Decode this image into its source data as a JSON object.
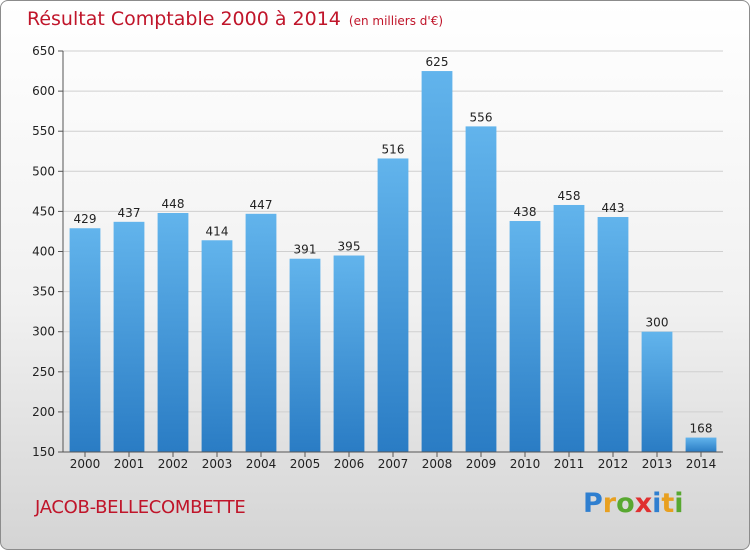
{
  "chart_data": {
    "type": "bar",
    "title": "Résultat Comptable 2000 à 2014",
    "subtitle": "(en milliers d'€)",
    "categories": [
      "2000",
      "2001",
      "2002",
      "2003",
      "2004",
      "2005",
      "2006",
      "2007",
      "2008",
      "2009",
      "2010",
      "2011",
      "2012",
      "2013",
      "2014"
    ],
    "values": [
      429,
      437,
      448,
      414,
      447,
      391,
      395,
      516,
      625,
      556,
      438,
      458,
      443,
      300,
      168
    ],
    "ylim": [
      150,
      650
    ],
    "yticks": [
      150,
      200,
      250,
      300,
      350,
      400,
      450,
      500,
      550,
      600,
      650
    ],
    "grid": true,
    "xlabel": "",
    "ylabel": "",
    "colors": {
      "bar_top": "#62b4ec",
      "bar_bottom": "#2a7cc4",
      "grid": "#cfcfcf",
      "title": "#c0152a"
    }
  },
  "commune": "JACOB-BELLECOMBETTE",
  "logo": {
    "letters": [
      "P",
      "r",
      "o",
      "x",
      "i",
      "t",
      "i"
    ],
    "colors": [
      "#2f7fd0",
      "#e8a020",
      "#58a830",
      "#e03030",
      "#2f7fd0",
      "#e8a020",
      "#58a830"
    ]
  }
}
